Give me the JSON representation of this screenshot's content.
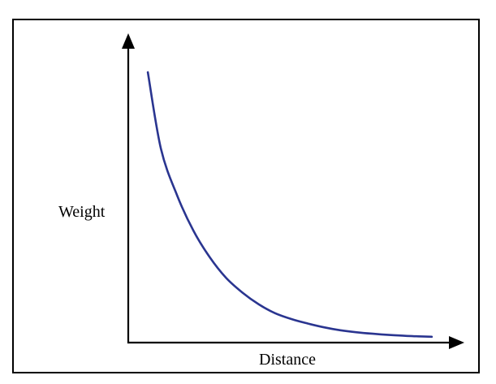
{
  "chart_data": {
    "type": "line",
    "title": "",
    "xlabel": "Distance",
    "ylabel": "Weight",
    "xlim": [
      0,
      1
    ],
    "ylim": [
      0,
      1
    ],
    "grid": false,
    "legend": "none",
    "x_ticks": [],
    "y_ticks": [],
    "series": [
      {
        "color": "#2a3590",
        "x": [
          0.06,
          0.1,
          0.15,
          0.2,
          0.25,
          0.3,
          0.35,
          0.4,
          0.45,
          0.5,
          0.55,
          0.6,
          0.65,
          0.7,
          0.75,
          0.8,
          0.85,
          0.9,
          0.93
        ],
        "y": [
          0.92,
          0.66,
          0.5,
          0.38,
          0.29,
          0.22,
          0.17,
          0.13,
          0.1,
          0.08,
          0.065,
          0.052,
          0.042,
          0.035,
          0.03,
          0.026,
          0.023,
          0.021,
          0.02
        ]
      }
    ]
  },
  "colors": {
    "axis": "#000000",
    "curve": "#2a3590",
    "background": "#ffffff"
  }
}
